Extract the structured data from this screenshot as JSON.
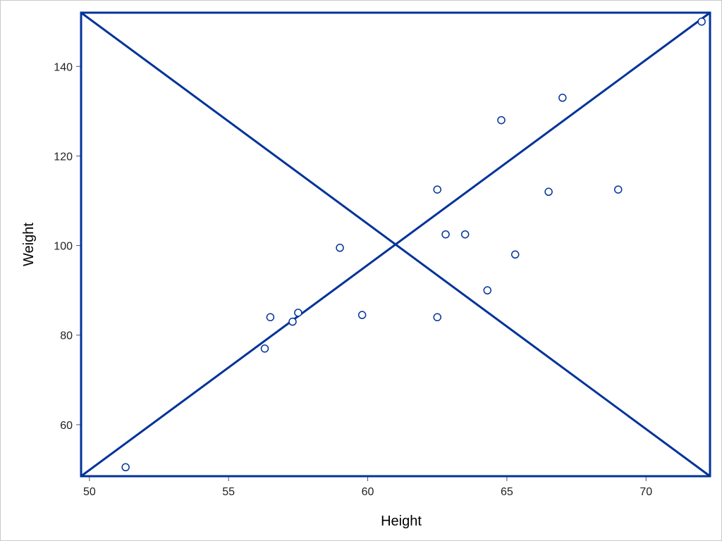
{
  "chart_data": {
    "type": "scatter",
    "xlabel": "Height",
    "ylabel": "Weight",
    "xlim": [
      49.7,
      72.3
    ],
    "ylim": [
      48.5,
      152.0
    ],
    "xticks": [
      50,
      55,
      60,
      65,
      70
    ],
    "yticks": [
      60,
      80,
      100,
      120,
      140
    ],
    "grid": false,
    "points": [
      {
        "x": 51.3,
        "y": 50.5
      },
      {
        "x": 56.3,
        "y": 77.0
      },
      {
        "x": 56.5,
        "y": 84.0
      },
      {
        "x": 57.3,
        "y": 83.0
      },
      {
        "x": 57.5,
        "y": 85.0
      },
      {
        "x": 59.0,
        "y": 99.5
      },
      {
        "x": 59.8,
        "y": 84.5
      },
      {
        "x": 62.5,
        "y": 112.5
      },
      {
        "x": 62.5,
        "y": 84.0
      },
      {
        "x": 62.8,
        "y": 102.5
      },
      {
        "x": 63.5,
        "y": 102.5
      },
      {
        "x": 64.3,
        "y": 90.0
      },
      {
        "x": 64.8,
        "y": 128.0
      },
      {
        "x": 65.3,
        "y": 98.0
      },
      {
        "x": 66.5,
        "y": 112.0
      },
      {
        "x": 67.0,
        "y": 133.0
      },
      {
        "x": 69.0,
        "y": 112.5
      },
      {
        "x": 72.0,
        "y": 150.0
      }
    ],
    "overlay": "rectangle framing the data area with both diagonals drawn",
    "colors": {
      "line": "#003399",
      "marker": "#003399",
      "axis": "#555555",
      "text": "#222222"
    }
  }
}
